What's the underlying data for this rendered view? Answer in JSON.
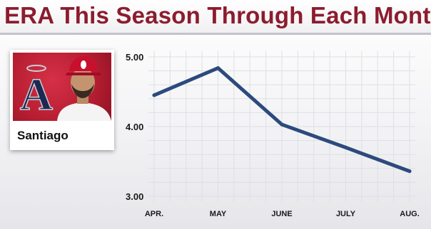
{
  "title": "ERA This Season Through Each Month",
  "player": {
    "name": "Santiago",
    "team_logo_text": "A"
  },
  "colors": {
    "title": "#8c1c2e",
    "line": "#2c4a7c",
    "grid": "#dcdfe6",
    "team_red": "#b51d31"
  },
  "chart_data": {
    "type": "line",
    "title": "ERA This Season Through Each Month",
    "xlabel": "",
    "ylabel": "",
    "categories": [
      "APR.",
      "MAY",
      "JUNE",
      "JULY",
      "AUG."
    ],
    "yticks": [
      "3.00",
      "4.00",
      "5.00"
    ],
    "ylim": [
      3.0,
      5.0
    ],
    "series": [
      {
        "values": [
          4.45,
          4.84,
          4.03,
          3.7,
          3.36
        ]
      }
    ],
    "grid": true
  }
}
